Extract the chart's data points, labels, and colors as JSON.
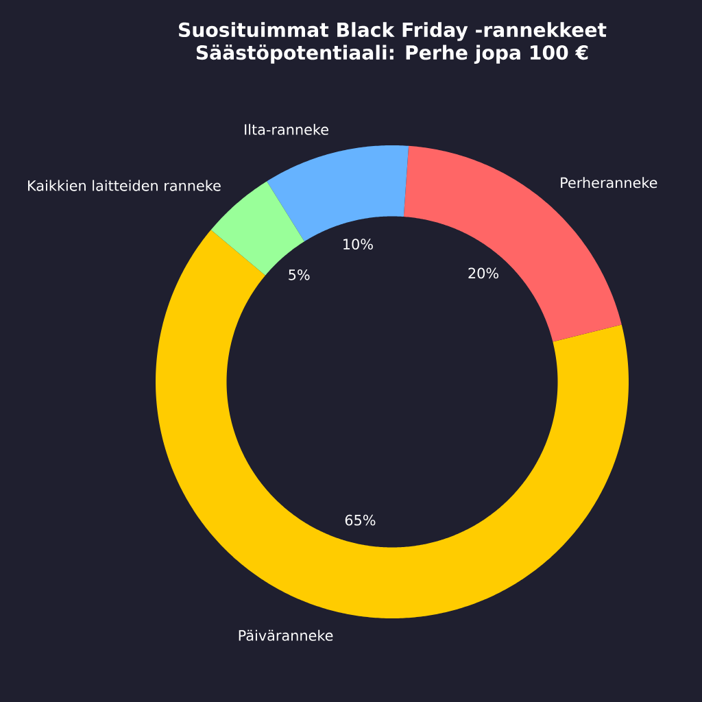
{
  "chart_data": {
    "type": "donut",
    "title": "Suosituimmat Black Friday -rannekkeet",
    "subtitle": "Säästöpotentiaali: Perhe jopa 100 €",
    "categories": [
      "Päiväranneke",
      "Perheranneke",
      "Ilta-ranneke",
      "Kaikkien laitteiden ranneke"
    ],
    "values": [
      65,
      20,
      10,
      5
    ],
    "colors": [
      "#ffcc00",
      "#ff6666",
      "#66b3ff",
      "#99ff99"
    ],
    "value_labels": [
      "65%",
      "20%",
      "10%",
      "5%"
    ]
  }
}
